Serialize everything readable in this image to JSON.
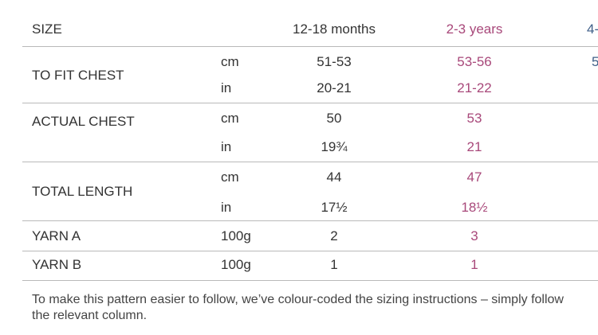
{
  "header": {
    "label": "SIZE",
    "sizes": [
      "12-18 months",
      "2-3 years",
      "4-"
    ]
  },
  "rows": [
    {
      "label": "TO FIT CHEST",
      "units": [
        "cm",
        "in"
      ],
      "values": [
        [
          "51-53",
          "53-56",
          "5"
        ],
        [
          "20-21",
          "21-22",
          ""
        ]
      ]
    },
    {
      "label": "ACTUAL CHEST",
      "units": [
        "cm",
        "in"
      ],
      "values": [
        [
          "50",
          "53",
          ""
        ],
        [
          "19¾",
          "21",
          ""
        ]
      ]
    },
    {
      "label": "TOTAL LENGTH",
      "units": [
        "cm",
        "in"
      ],
      "values": [
        [
          "44",
          "47",
          ""
        ],
        [
          "17½",
          "18½",
          ""
        ]
      ]
    },
    {
      "label": "YARN A",
      "units": [
        "100g"
      ],
      "values": [
        [
          "2",
          "3",
          ""
        ]
      ]
    },
    {
      "label": "YARN B",
      "units": [
        "100g"
      ],
      "values": [
        [
          "1",
          "1",
          ""
        ]
      ]
    }
  ],
  "colors": {
    "size1": "#333333",
    "size2": "#a8487a",
    "size3": "#3f5f88"
  },
  "footnote": "To make this pattern easier to follow, we’ve colour-coded the sizing instructions – simply follow the relevant column."
}
